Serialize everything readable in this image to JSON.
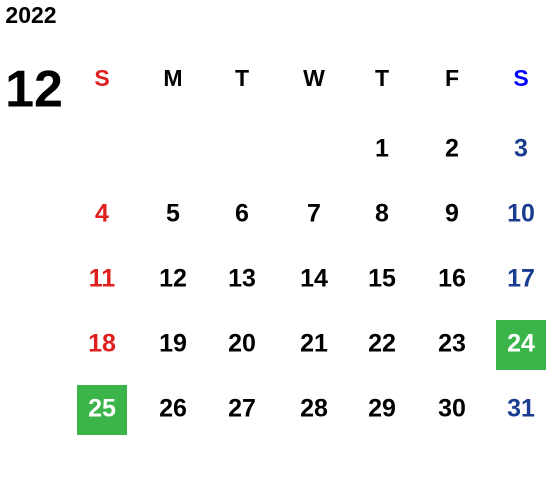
{
  "year": "2022",
  "month": "12",
  "weekdays": [
    "S",
    "M",
    "T",
    "W",
    "T",
    "F",
    "S"
  ],
  "weeks": [
    [
      null,
      null,
      null,
      null,
      1,
      2,
      3
    ],
    [
      4,
      5,
      6,
      7,
      8,
      9,
      10
    ],
    [
      11,
      12,
      13,
      14,
      15,
      16,
      17
    ],
    [
      18,
      19,
      20,
      21,
      22,
      23,
      24
    ],
    [
      25,
      26,
      27,
      28,
      29,
      30,
      31
    ]
  ],
  "highlighted_days": [
    24,
    25
  ],
  "colors": {
    "weekday": "#000000",
    "sunday": "#e0201f",
    "saturday_header": "#0000ff",
    "saturday": "#1a3d8f",
    "highlight": "#3bb54a",
    "highlight_text": "#ffffff"
  }
}
